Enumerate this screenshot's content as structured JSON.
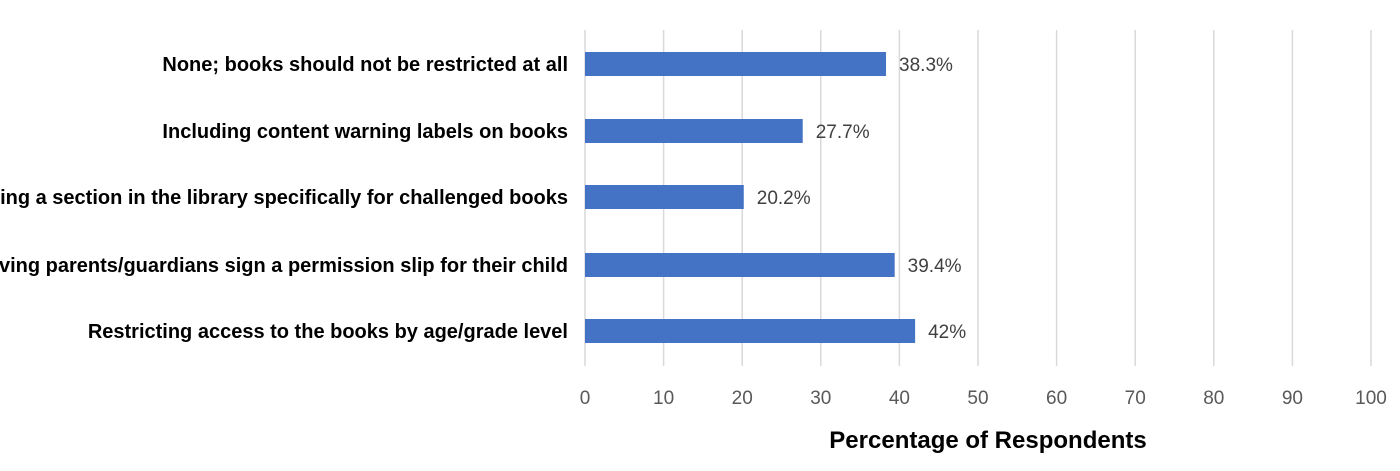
{
  "chart_data": {
    "type": "bar",
    "orientation": "horizontal",
    "categories": [
      "None; books should not be restricted at all",
      "Including content warning labels on books",
      "Creating a section in the library specifically for challenged books",
      "Having parents/guardians sign a permission slip for their child",
      "Restricting access to the books by age/grade level"
    ],
    "values": [
      38.3,
      27.7,
      20.2,
      39.4,
      42
    ],
    "data_labels": [
      "38.3%",
      "27.7%",
      "20.2%",
      "39.4%",
      "42%"
    ],
    "xlabel": "Percentage of Respondents",
    "ylabel": "",
    "xlim": [
      0,
      100
    ],
    "xticks": [
      0,
      10,
      20,
      30,
      40,
      50,
      60,
      70,
      80,
      90,
      100
    ],
    "grid": true,
    "legend": "none",
    "bar_color": "#4472C4"
  }
}
